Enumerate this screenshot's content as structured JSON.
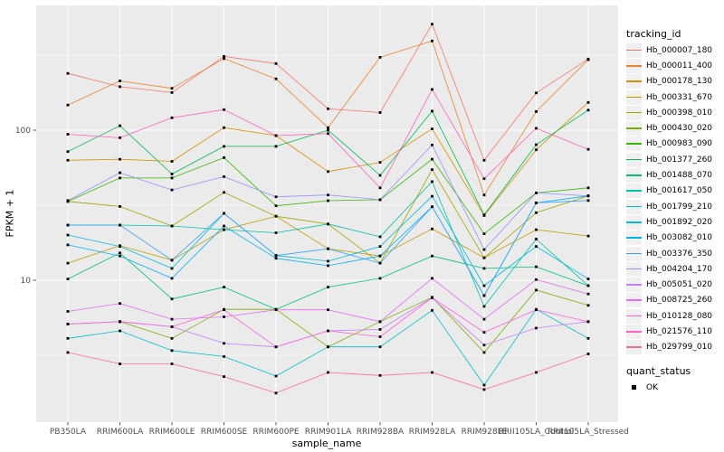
{
  "figure": {
    "background": "#FFFFFF",
    "panel_background": "#EBEBEB",
    "gridline_color": "#FFFFFF",
    "tick_label_color": "#4D4D4D",
    "tick_mark_color": "#333333",
    "point_color": "#000000"
  },
  "chart_data": {
    "type": "line",
    "title": "",
    "xlabel": "sample_name",
    "ylabel": "FPKM + 1",
    "y_scale": "log10",
    "grid": "on",
    "legend_position": "right",
    "y_ticks": [
      {
        "value": 10,
        "label": "10"
      },
      {
        "value": 100,
        "label": "100"
      }
    ],
    "y_minor_ticks": [
      3.162,
      31.62,
      316.2
    ],
    "ylim": [
      1.1,
      680
    ],
    "x_categories": [
      "PB350LA",
      "RRIM600LA",
      "RRIM600LE",
      "RRIM600SE",
      "RRIM600PE",
      "RRIM901LA",
      "RRIM928BA",
      "RRIM928LA",
      "RRIM928LE",
      "RRII105LA_Control",
      "RRII105LA_Stressed"
    ],
    "series": [
      {
        "name": "Hb_000007_180",
        "color": "#F8766D",
        "values": [
          239,
          195,
          178,
          310,
          278,
          139,
          131,
          509,
          63,
          177,
          298
        ]
      },
      {
        "name": "Hb_000011_400",
        "color": "#EA8331",
        "values": [
          147,
          213,
          190,
          300,
          220,
          104,
          306,
          393,
          37,
          133,
          295
        ]
      },
      {
        "name": "Hb_000178_130",
        "color": "#D89000",
        "values": [
          63,
          64,
          62,
          104,
          92,
          53,
          61,
          102,
          27,
          74,
          153
        ]
      },
      {
        "name": "Hb_000331_670",
        "color": "#C09B00",
        "values": [
          13,
          17,
          13.6,
          21.7,
          26.7,
          16.2,
          14.5,
          22,
          14.1,
          21.7,
          19.7
        ]
      },
      {
        "name": "Hb_000398_010",
        "color": "#A3A500",
        "values": [
          33.5,
          31,
          23,
          38.5,
          26.7,
          23.7,
          13,
          54.6,
          14.1,
          28.2,
          36.5
        ]
      },
      {
        "name": "Hb_000430_020",
        "color": "#7CAE00",
        "values": [
          5.1,
          5.3,
          4.1,
          6.4,
          6.4,
          3.6,
          5.3,
          7.7,
          3.3,
          8.6,
          6.8
        ]
      },
      {
        "name": "Hb_000983_090",
        "color": "#39B600",
        "values": [
          33.5,
          48,
          48,
          65.6,
          31.3,
          33.9,
          34.4,
          64.1,
          20.4,
          38.2,
          41.3
        ]
      },
      {
        "name": "Hb_001377_260",
        "color": "#00BB4E",
        "values": [
          72,
          107,
          51,
          78,
          78,
          100,
          50,
          134,
          27.3,
          80,
          136
        ]
      },
      {
        "name": "Hb_001488_070",
        "color": "#00BF7D",
        "values": [
          10.2,
          15.2,
          7.5,
          9.0,
          6.4,
          9.0,
          10.3,
          14.5,
          12.0,
          12.3,
          9.2
        ]
      },
      {
        "name": "Hb_001617_050",
        "color": "#00C1A3",
        "values": [
          23.3,
          23.3,
          23.0,
          21.7,
          20.7,
          23.7,
          19.5,
          45.4,
          6.7,
          18.8,
          9.2
        ]
      },
      {
        "name": "Hb_001799_210",
        "color": "#00BFC4",
        "values": [
          4.1,
          4.6,
          3.4,
          3.1,
          2.3,
          3.6,
          3.6,
          6.3,
          2.0,
          6.4,
          4.1
        ]
      },
      {
        "name": "Hb_001892_020",
        "color": "#00BAE0",
        "values": [
          20,
          16.8,
          12,
          27.9,
          14.6,
          13.4,
          16.8,
          36.3,
          9.2,
          16.8,
          10.2
        ]
      },
      {
        "name": "Hb_003082_010",
        "color": "#00B0F6",
        "values": [
          17.2,
          14.5,
          10.3,
          23,
          14,
          12.5,
          14.5,
          30.9,
          7.9,
          32.8,
          36.5
        ]
      },
      {
        "name": "Hb_003376_350",
        "color": "#35A2FF",
        "values": [
          23.3,
          23.3,
          13.6,
          27.9,
          14.6,
          16.2,
          13,
          30.9,
          7.9,
          32.8,
          34
        ]
      },
      {
        "name": "Hb_004204_170",
        "color": "#9590FF",
        "values": [
          34,
          52,
          40,
          49,
          36,
          37,
          34.4,
          79.6,
          16,
          38.2,
          36.5
        ]
      },
      {
        "name": "Hb_005051_020",
        "color": "#C77CFF",
        "values": [
          5.1,
          5.3,
          4.9,
          3.8,
          3.6,
          4.6,
          4.7,
          7.65,
          3.7,
          4.8,
          5.3
        ]
      },
      {
        "name": "Hb_008725_260",
        "color": "#E76BF3",
        "values": [
          6.2,
          7.0,
          5.5,
          5.7,
          6.35,
          6.35,
          5.3,
          10.3,
          5.5,
          10.1,
          8.1
        ]
      },
      {
        "name": "Hb_010128_080",
        "color": "#FA62DB",
        "values": [
          5.1,
          5.3,
          4.9,
          6.35,
          3.6,
          4.6,
          4.2,
          7.65,
          4.5,
          6.35,
          5.3
        ]
      },
      {
        "name": "Hb_021576_110",
        "color": "#FF62BC",
        "values": [
          94,
          89,
          121,
          137,
          92,
          95,
          41.3,
          187,
          47.5,
          103,
          74.5
        ]
      },
      {
        "name": "Hb_029799_010",
        "color": "#FF6A98",
        "values": [
          3.3,
          2.77,
          2.77,
          2.28,
          1.77,
          2.43,
          2.32,
          2.43,
          1.87,
          2.43,
          3.23
        ]
      }
    ]
  },
  "legend": {
    "tracking_title": "tracking_id",
    "quant_title": "quant_status",
    "quant_items": [
      {
        "label": "OK"
      }
    ]
  }
}
